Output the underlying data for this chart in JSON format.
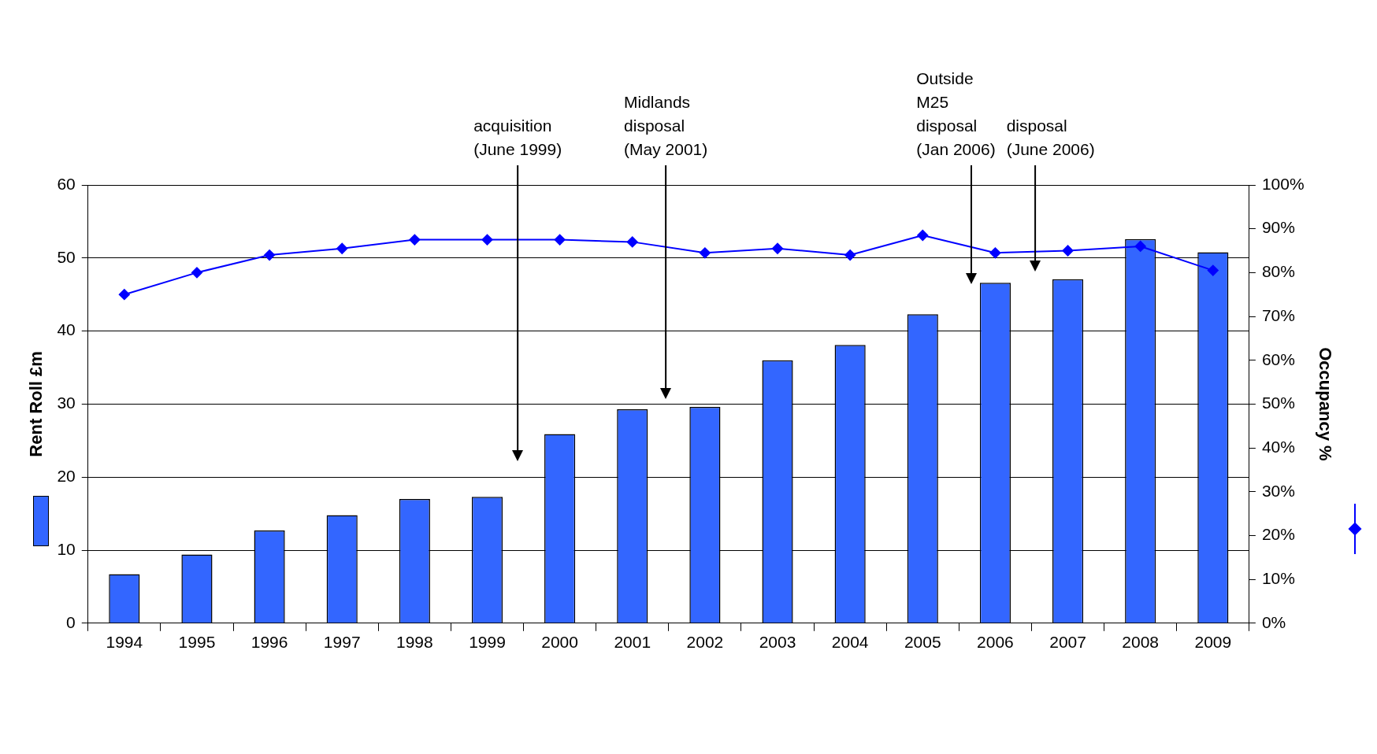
{
  "chart_data": {
    "type": "bar",
    "ylabel": "Rent Roll £m",
    "y2label": "Occupancy %",
    "x": [
      1994,
      1995,
      1996,
      1997,
      1998,
      1999,
      2000,
      2001,
      2002,
      2003,
      2004,
      2005,
      2006,
      2007,
      2008,
      2009
    ],
    "xlim": [
      1993.5,
      2009.5
    ],
    "xticks": [
      1994,
      1995,
      1996,
      1997,
      1998,
      1999,
      2000,
      2001,
      2002,
      2003,
      2004,
      2005,
      2006,
      2007,
      2008,
      2009
    ],
    "ylim": [
      0,
      60
    ],
    "yticks": [
      0,
      10,
      20,
      30,
      40,
      50,
      60
    ],
    "y2lim": [
      0,
      100
    ],
    "y2ticks": [
      {
        "value": 0,
        "label": "0%"
      },
      {
        "value": 10,
        "label": "10%"
      },
      {
        "value": 20,
        "label": "20%"
      },
      {
        "value": 30,
        "label": "30%"
      },
      {
        "value": 40,
        "label": "40%"
      },
      {
        "value": 50,
        "label": "50%"
      },
      {
        "value": 60,
        "label": "60%"
      },
      {
        "value": 70,
        "label": "70%"
      },
      {
        "value": 80,
        "label": "80%"
      },
      {
        "value": 90,
        "label": "90%"
      },
      {
        "value": 100,
        "label": "100%"
      }
    ],
    "grid": "y",
    "marker": "diamond",
    "series": [
      {
        "color": "#3366ff",
        "values": [
          6.7,
          9.4,
          12.7,
          14.8,
          17.0,
          17.3,
          25.9,
          29.3,
          29.6,
          36.0,
          38.1,
          42.3,
          46.6,
          47.1,
          52.6,
          50.8
        ]
      },
      {
        "type": "line",
        "axis": "y2",
        "color": "#0000ff",
        "values": [
          75,
          80,
          84,
          85.5,
          87.5,
          87.5,
          87.5,
          87,
          84.5,
          85.5,
          84,
          88.5,
          84.5,
          85,
          86,
          80.5
        ]
      }
    ],
    "ref_lines": [
      {
        "axis": "x",
        "value": 1999.42,
        "label": "acquisition\n(June 1999)"
      },
      {
        "axis": "x",
        "value": 2001.46,
        "label": "Midlands\ndisposal\n(May 2001)"
      },
      {
        "axis": "x",
        "value": 2005.67,
        "label": "Outside\nM25\ndisposal\n(Jan 2006)"
      },
      {
        "axis": "x",
        "value": 2006.55,
        "label": "disposal\n(June 2006)"
      }
    ]
  }
}
